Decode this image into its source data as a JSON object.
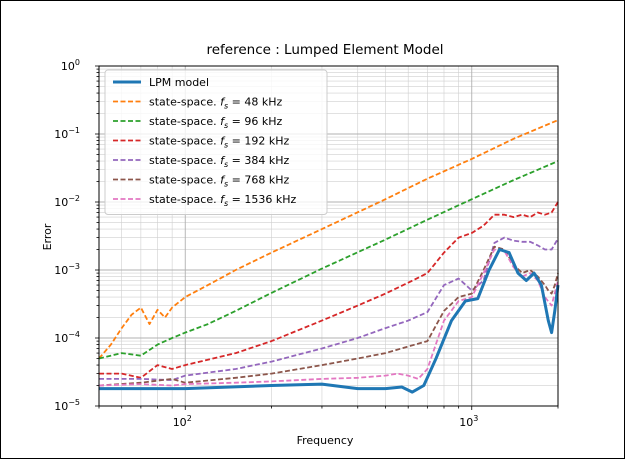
{
  "chart_data": {
    "type": "line",
    "title": "reference : Lumped Element Model",
    "xlabel": "Frequency",
    "ylabel": "Error",
    "xscale": "log",
    "yscale": "log",
    "xlim": [
      50,
      2000
    ],
    "ylim": [
      1e-05,
      1
    ],
    "grid": "major and minor",
    "legend_position": "top-left",
    "x_tick_labels": [
      {
        "value": 100,
        "base": "10",
        "exp": "2"
      },
      {
        "value": 1000,
        "base": "10",
        "exp": "3"
      }
    ],
    "y_tick_labels": [
      {
        "value": 1e-05,
        "base": "10",
        "exp": "−5"
      },
      {
        "value": 0.0001,
        "base": "10",
        "exp": "−4"
      },
      {
        "value": 0.001,
        "base": "10",
        "exp": "−3"
      },
      {
        "value": 0.01,
        "base": "10",
        "exp": "−2"
      },
      {
        "value": 0.1,
        "base": "10",
        "exp": "−1"
      },
      {
        "value": 1,
        "base": "10",
        "exp": "0"
      }
    ],
    "series": [
      {
        "name": "LPM model",
        "color": "#1f77b4",
        "style": "solid",
        "width": 3,
        "x": [
          50,
          100,
          200,
          300,
          400,
          500,
          570,
          620,
          680,
          750,
          850,
          950,
          1050,
          1150,
          1250,
          1350,
          1450,
          1550,
          1650,
          1750,
          1850,
          1900,
          1950,
          2000
        ],
        "y": [
          1.8e-05,
          1.8e-05,
          2e-05,
          2.1e-05,
          1.8e-05,
          1.8e-05,
          1.9e-05,
          1.6e-05,
          2e-05,
          5e-05,
          0.00018,
          0.00035,
          0.00038,
          0.001,
          0.002,
          0.0018,
          0.0009,
          0.0007,
          0.0009,
          0.0006,
          0.00018,
          0.00012,
          0.00025,
          0.0006
        ]
      },
      {
        "name": "state-space. f_s = 48 kHz",
        "label_prefix": "state-space. ",
        "label_suffix": " = 48 kHz",
        "color": "#ff7f0e",
        "style": "dashed",
        "width": 1.8,
        "x": [
          50,
          55,
          60,
          65,
          70,
          75,
          80,
          85,
          90,
          100,
          120,
          150,
          200,
          300,
          500,
          700,
          1000,
          1400,
          2000
        ],
        "y": [
          5e-05,
          8e-05,
          0.00014,
          0.00022,
          0.00028,
          0.00016,
          0.00026,
          0.0002,
          0.00028,
          0.0004,
          0.0006,
          0.001,
          0.0018,
          0.004,
          0.011,
          0.022,
          0.043,
          0.085,
          0.16
        ]
      },
      {
        "name": "state-space. f_s = 96 kHz",
        "label_prefix": "state-space. ",
        "label_suffix": " = 96 kHz",
        "color": "#2ca02c",
        "style": "dashed",
        "width": 1.8,
        "x": [
          50,
          60,
          70,
          80,
          90,
          100,
          120,
          150,
          200,
          300,
          500,
          700,
          1000,
          1400,
          2000
        ],
        "y": [
          5e-05,
          6e-05,
          5.5e-05,
          8e-05,
          0.0001,
          0.00012,
          0.00016,
          0.00025,
          0.00046,
          0.00105,
          0.0028,
          0.0055,
          0.011,
          0.021,
          0.04
        ]
      },
      {
        "name": "state-space. f_s = 192 kHz",
        "label_prefix": "state-space. ",
        "label_suffix": " = 192 kHz",
        "color": "#d62728",
        "style": "dashed",
        "width": 1.8,
        "x": [
          50,
          60,
          70,
          80,
          90,
          100,
          150,
          200,
          300,
          400,
          500,
          600,
          700,
          800,
          900,
          1000,
          1100,
          1200,
          1300,
          1400,
          1500,
          1600,
          1700,
          1800,
          1900,
          2000
        ],
        "y": [
          3e-05,
          3e-05,
          2.6e-05,
          4e-05,
          3.5e-05,
          4e-05,
          6e-05,
          9e-05,
          0.00018,
          0.0003,
          0.00045,
          0.00065,
          0.0009,
          0.0018,
          0.003,
          0.0035,
          0.0045,
          0.0065,
          0.0065,
          0.006,
          0.0065,
          0.006,
          0.007,
          0.0065,
          0.007,
          0.01
        ]
      },
      {
        "name": "state-space. f_s = 384 kHz",
        "label_prefix": "state-space. ",
        "label_suffix": " = 384 kHz",
        "color": "#9467bd",
        "style": "dashed",
        "width": 1.8,
        "x": [
          50,
          70,
          90,
          100,
          150,
          200,
          300,
          400,
          500,
          600,
          700,
          800,
          900,
          1000,
          1100,
          1200,
          1300,
          1400,
          1500,
          1600,
          1700,
          1800,
          1900,
          2000
        ],
        "y": [
          2.5e-05,
          2.5e-05,
          2.4e-05,
          2.8e-05,
          3.5e-05,
          4.5e-05,
          7e-05,
          0.0001,
          0.00014,
          0.00018,
          0.00024,
          0.0006,
          0.00075,
          0.0005,
          0.0007,
          0.0025,
          0.003,
          0.0027,
          0.0026,
          0.0026,
          0.0023,
          0.002,
          0.002,
          0.0029
        ]
      },
      {
        "name": "state-space. f_s = 768 kHz",
        "label_prefix": "state-space. ",
        "label_suffix": " = 768 kHz",
        "color": "#8c564b",
        "style": "dashed",
        "width": 1.8,
        "x": [
          50,
          70,
          90,
          100,
          150,
          200,
          300,
          400,
          500,
          600,
          700,
          800,
          900,
          1000,
          1100,
          1200,
          1300,
          1400,
          1500,
          1600,
          1700,
          1800,
          1850,
          1900,
          1950,
          2000
        ],
        "y": [
          2e-05,
          2.2e-05,
          2.5e-05,
          2.2e-05,
          2.6e-05,
          3e-05,
          4e-05,
          5e-05,
          6e-05,
          7.5e-05,
          9e-05,
          0.00025,
          0.0004,
          0.00045,
          0.001,
          0.0022,
          0.002,
          0.0012,
          0.0009,
          0.001,
          0.0008,
          0.0006,
          0.0005,
          0.00045,
          0.0006,
          0.0009
        ]
      },
      {
        "name": "state-space. f_s = 1536 kHz",
        "label_prefix": "state-space. ",
        "label_suffix": " = 1536 kHz",
        "color": "#e377c2",
        "style": "dashed",
        "width": 1.8,
        "x": [
          50,
          70,
          90,
          100,
          150,
          200,
          300,
          400,
          500,
          550,
          600,
          650,
          700,
          800,
          900,
          1000,
          1100,
          1200,
          1300,
          1400,
          1500,
          1600,
          1700,
          1800,
          1900,
          2000
        ],
        "y": [
          2e-05,
          2.1e-05,
          2e-05,
          2.1e-05,
          2.2e-05,
          2.3e-05,
          2.5e-05,
          2.6e-05,
          2.8e-05,
          3e-05,
          2.8e-05,
          2.5e-05,
          3.5e-05,
          0.00018,
          0.00035,
          0.0004,
          0.0009,
          0.002,
          0.0019,
          0.0011,
          0.0008,
          0.0009,
          0.0007,
          0.0004,
          0.0003,
          0.0007
        ]
      }
    ]
  }
}
